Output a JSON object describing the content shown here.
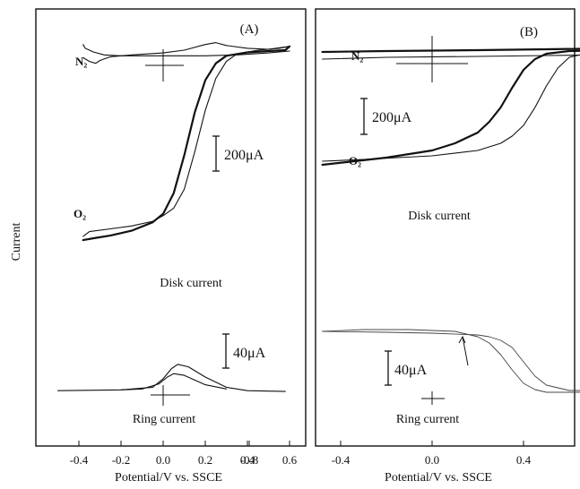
{
  "chart_data": {
    "type": "line",
    "ylabel": "Current",
    "panels": [
      {
        "id": "A",
        "label": "(A)",
        "xlabel": "Potential/V vs. SSCE",
        "x_ticks": [
          -0.4,
          -0.2,
          0.0,
          0.2,
          0.4,
          0.6
        ],
        "x_tick_labels": [
          "-0.4",
          "-0.2",
          "0.0",
          "0.2",
          "0.4",
          "0.6"
        ],
        "xlim": [
          -0.52,
          0.64
        ],
        "annotations": {
          "n2": "N₂",
          "o2": "O₂",
          "disk": "Disk current",
          "ring": "Ring current",
          "scale_disk": "200μA",
          "scale_ring": "40μA"
        },
        "disk_series": [
          {
            "name": "O₂ forward",
            "x": [
              -0.38,
              -0.33,
              -0.25,
              -0.15,
              -0.05,
              0.0,
              0.05,
              0.1,
              0.15,
              0.2,
              0.25,
              0.3,
              0.4,
              0.5,
              0.58,
              0.6
            ],
            "y": [
              -1010,
              -1000,
              -985,
              -960,
              -915,
              -870,
              -760,
              -560,
              -330,
              -160,
              -70,
              -30,
              -12,
              -5,
              0,
              20
            ]
          },
          {
            "name": "O₂ reverse",
            "x": [
              0.6,
              0.55,
              0.45,
              0.35,
              0.3,
              0.25,
              0.2,
              0.15,
              0.1,
              0.05,
              0.0,
              -0.05,
              -0.15,
              -0.25,
              -0.35,
              -0.38
            ],
            "y": [
              20,
              10,
              0,
              -20,
              -60,
              -150,
              -320,
              -540,
              -740,
              -840,
              -880,
              -910,
              -935,
              -950,
              -965,
              -990
            ]
          },
          {
            "name": "N₂ forward",
            "x": [
              -0.38,
              -0.35,
              -0.32,
              -0.3,
              -0.25,
              -0.15,
              0.0,
              0.1,
              0.2,
              0.25,
              0.3,
              0.4,
              0.5,
              0.6
            ],
            "y": [
              -40,
              -60,
              -70,
              -55,
              -35,
              -25,
              -15,
              0,
              30,
              40,
              25,
              10,
              5,
              20
            ]
          },
          {
            "name": "N₂ reverse",
            "x": [
              0.6,
              0.5,
              0.35,
              0.2,
              0.05,
              -0.1,
              -0.2,
              -0.28,
              -0.33,
              -0.37,
              -0.38
            ],
            "y": [
              -5,
              -15,
              -25,
              -30,
              -30,
              -30,
              -30,
              -25,
              -10,
              10,
              30
            ]
          }
        ],
        "ring_series": [
          {
            "name": "O₂ ring",
            "x": [
              -0.5,
              -0.2,
              -0.05,
              0.0,
              0.04,
              0.07,
              0.12,
              0.2,
              0.3,
              0.4,
              0.58
            ],
            "y": [
              4,
              5,
              8,
              18,
              30,
              35,
              32,
              20,
              8,
              4,
              3
            ]
          },
          {
            "name": "O₂ ring (return)",
            "x": [
              0.3,
              0.2,
              0.1,
              0.05,
              0.02,
              -0.02,
              -0.1,
              -0.2
            ],
            "y": [
              6,
              11,
              22,
              24,
              20,
              12,
              6,
              5
            ]
          }
        ]
      },
      {
        "id": "B",
        "label": "(B)",
        "xlabel": "Potential/V vs. SSCE",
        "x_ticks": [
          -0.8,
          -0.4,
          0.0,
          0.4,
          0.8
        ],
        "x_tick_labels": [
          "-0.8",
          "-0.4",
          "0.0",
          "0.4",
          "0.8"
        ],
        "xlim": [
          -0.92,
          1.12
        ],
        "annotations": {
          "n2": "N₂",
          "o2": "O₂",
          "disk": "Disk current",
          "ring": "Ring current",
          "scale_disk": "200μA",
          "scale_ring": "40μA"
        },
        "disk_series": [
          {
            "name": "O₂ forward",
            "x": [
              -0.48,
              -0.2,
              0.0,
              0.1,
              0.2,
              0.25,
              0.3,
              0.35,
              0.4,
              0.45,
              0.5,
              0.6,
              0.8,
              1.0,
              1.08
            ],
            "y": [
              -640,
              -600,
              -560,
              -520,
              -460,
              -400,
              -320,
              -210,
              -110,
              -50,
              -20,
              -5,
              0,
              0,
              20
            ]
          },
          {
            "name": "O₂ reverse",
            "x": [
              1.08,
              0.9,
              0.7,
              0.6,
              0.55,
              0.5,
              0.45,
              0.4,
              0.35,
              0.3,
              0.2,
              0.0,
              -0.3,
              -0.48
            ],
            "y": [
              15,
              5,
              -10,
              -40,
              -100,
              -200,
              -320,
              -420,
              -480,
              -520,
              -560,
              -590,
              -610,
              -620
            ]
          },
          {
            "name": "N₂ forward",
            "x": [
              -0.48,
              -0.2,
              0.2,
              0.5,
              0.8,
              1.08
            ],
            "y": [
              -10,
              -5,
              0,
              5,
              10,
              25
            ]
          },
          {
            "name": "N₂ reverse",
            "x": [
              1.08,
              0.8,
              0.5,
              0.2,
              -0.2,
              -0.48
            ],
            "y": [
              -15,
              -25,
              -30,
              -35,
              -40,
              -50
            ]
          }
        ],
        "ring_series": [
          {
            "name": "O₂ ring forward",
            "x": [
              -0.48,
              -0.3,
              -0.1,
              0.1,
              0.2,
              0.25,
              0.3,
              0.35,
              0.4,
              0.45,
              0.5,
              0.6,
              0.7
            ],
            "y": [
              68,
              70,
              70,
              68,
              62,
              55,
              42,
              25,
              10,
              3,
              0,
              0,
              0
            ]
          },
          {
            "name": "O₂ ring reverse",
            "x": [
              0.7,
              0.6,
              0.5,
              0.45,
              0.4,
              0.35,
              0.3,
              0.25,
              0.2,
              0.0,
              -0.2,
              -0.48
            ],
            "y": [
              2,
              2,
              8,
              18,
              34,
              50,
              58,
              62,
              64,
              66,
              67,
              68
            ]
          }
        ]
      }
    ]
  }
}
